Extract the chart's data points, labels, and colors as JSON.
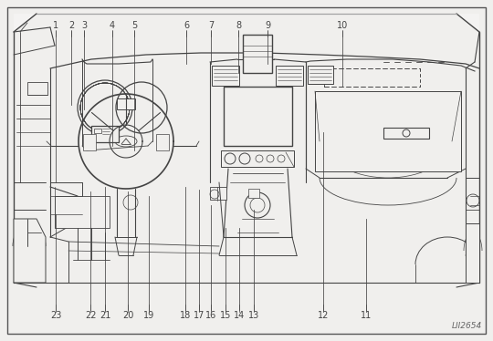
{
  "bg_color": "#f0efed",
  "border_color": "#444444",
  "line_color": "#444444",
  "gray_color": "#888888",
  "light_gray": "#bbbbbb",
  "figsize": [
    5.4,
    3.74
  ],
  "dpi": 100,
  "watermark": "LII2654",
  "top_labels": [
    [
      "1",
      0.113
    ],
    [
      "2",
      0.145
    ],
    [
      "3",
      0.17
    ],
    [
      "4",
      0.228
    ],
    [
      "5",
      0.272
    ],
    [
      "6",
      0.378
    ],
    [
      "7",
      0.427
    ],
    [
      "8",
      0.483
    ],
    [
      "9",
      0.543
    ],
    [
      "10",
      0.695
    ]
  ],
  "bottom_labels": [
    [
      "23",
      0.113
    ],
    [
      "22",
      0.183
    ],
    [
      "21",
      0.212
    ],
    [
      "20",
      0.26
    ],
    [
      "19",
      0.302
    ],
    [
      "18",
      0.375
    ],
    [
      "17",
      0.402
    ],
    [
      "16",
      0.428
    ],
    [
      "15",
      0.457
    ],
    [
      "14",
      0.485
    ],
    [
      "13",
      0.515
    ],
    [
      "12",
      0.655
    ],
    [
      "11",
      0.74
    ]
  ]
}
